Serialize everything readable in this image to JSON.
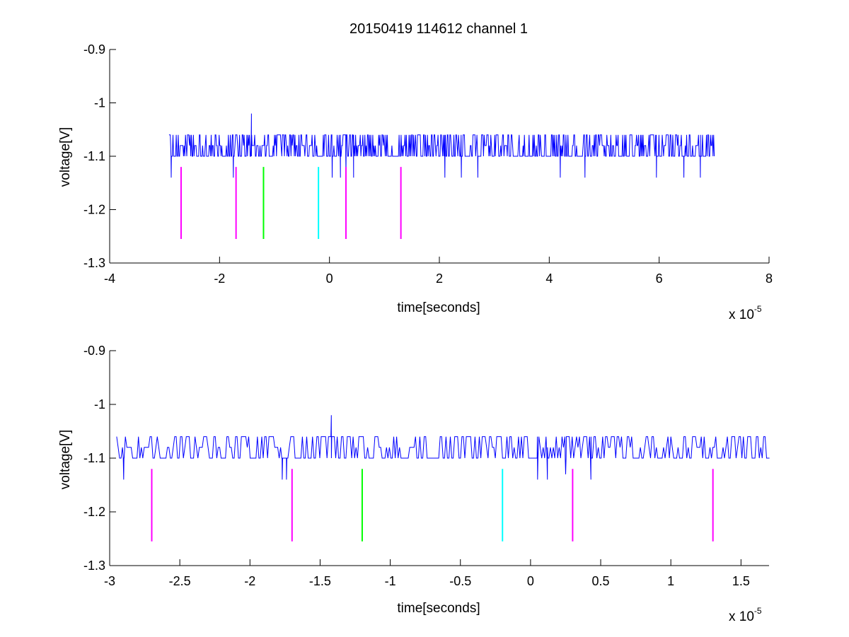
{
  "figure": {
    "title": "20150419 114612 channel 1",
    "background": "#ffffff"
  },
  "colors": {
    "trace": "#0000ff",
    "magenta": "#ff00ff",
    "green": "#00ff00",
    "cyan": "#00ffff",
    "axis": "#000000"
  },
  "chart_data": [
    {
      "type": "line",
      "title": "20150419 114612 channel 1",
      "xlabel": "time[seconds]",
      "ylabel": "voltage[V]",
      "x_scale_label": "x 10",
      "x_scale_exponent": "-5",
      "xlim": [
        -4,
        8
      ],
      "ylim": [
        -1.3,
        -0.9
      ],
      "ydir": "reverse",
      "xticks": [
        -4,
        -2,
        0,
        2,
        4,
        6,
        8
      ],
      "xtick_labels": [
        "-4",
        "-2",
        "0",
        "2",
        "4",
        "6",
        "8"
      ],
      "yticks": [
        -0.9,
        -1.0,
        -1.1,
        -1.2,
        -1.3
      ],
      "ytick_labels": [
        "-0.9",
        "-1",
        "-1.1",
        "-1.2",
        "-1.3"
      ],
      "grid": false,
      "series": [
        {
          "type": "step-noise",
          "color": "#0000ff",
          "x_range": [
            -2.92,
            7.0
          ],
          "levels": [
            -1.06,
            -1.08,
            -1.1
          ],
          "dips": [
            {
              "x": -2.88,
              "y": -1.14
            },
            {
              "x": -1.75,
              "y": -1.14
            },
            {
              "x": 0.05,
              "y": -1.14
            },
            {
              "x": 0.2,
              "y": -1.14
            },
            {
              "x": 0.3,
              "y": -1.13
            },
            {
              "x": 0.44,
              "y": -1.14
            },
            {
              "x": 2.1,
              "y": -1.14
            },
            {
              "x": 2.4,
              "y": -1.14
            },
            {
              "x": 2.7,
              "y": -1.14
            },
            {
              "x": 4.2,
              "y": -1.14
            },
            {
              "x": 4.65,
              "y": -1.14
            },
            {
              "x": 5.95,
              "y": -1.14
            },
            {
              "x": 6.45,
              "y": -1.14
            },
            {
              "x": 6.75,
              "y": -1.14
            }
          ],
          "spikes": [
            {
              "x": -1.42,
              "y": -1.02
            }
          ]
        }
      ],
      "markers": [
        {
          "x": -2.7,
          "y1": -1.12,
          "y2": -1.255,
          "color": "#ff00ff"
        },
        {
          "x": -1.7,
          "y1": -1.12,
          "y2": -1.255,
          "color": "#ff00ff"
        },
        {
          "x": -1.2,
          "y1": -1.12,
          "y2": -1.255,
          "color": "#00ff00"
        },
        {
          "x": -0.2,
          "y1": -1.12,
          "y2": -1.255,
          "color": "#00ffff"
        },
        {
          "x": 0.3,
          "y1": -1.12,
          "y2": -1.255,
          "color": "#ff00ff"
        },
        {
          "x": 1.3,
          "y1": -1.12,
          "y2": -1.255,
          "color": "#ff00ff"
        }
      ]
    },
    {
      "type": "line",
      "title": "",
      "xlabel": "time[seconds]",
      "ylabel": "voltage[V]",
      "x_scale_label": "x 10",
      "x_scale_exponent": "-5",
      "xlim": [
        -3.0,
        1.7
      ],
      "ylim": [
        -1.3,
        -0.9
      ],
      "ydir": "reverse",
      "xticks": [
        -3,
        -2.5,
        -2,
        -1.5,
        -1,
        -0.5,
        0,
        0.5,
        1,
        1.5
      ],
      "xtick_labels": [
        "-3",
        "-2.5",
        "-2",
        "-1.5",
        "-1",
        "-0.5",
        "0",
        "0.5",
        "1",
        "1.5"
      ],
      "yticks": [
        -0.9,
        -1.0,
        -1.1,
        -1.2,
        -1.3
      ],
      "ytick_labels": [
        "-0.9",
        "-1",
        "-1.1",
        "-1.2",
        "-1.3"
      ],
      "grid": false,
      "series": [
        {
          "type": "step-noise",
          "color": "#0000ff",
          "x_range": [
            -2.95,
            1.7
          ],
          "levels": [
            -1.06,
            -1.08,
            -1.1
          ],
          "dips": [
            {
              "x": -2.9,
              "y": -1.14
            },
            {
              "x": -1.77,
              "y": -1.14
            },
            {
              "x": -1.74,
              "y": -1.14
            },
            {
              "x": 0.05,
              "y": -1.14
            },
            {
              "x": 0.12,
              "y": -1.14
            },
            {
              "x": 0.25,
              "y": -1.13
            },
            {
              "x": 0.43,
              "y": -1.14
            }
          ],
          "spikes": [
            {
              "x": -1.42,
              "y": -1.02
            }
          ]
        }
      ],
      "markers": [
        {
          "x": -2.7,
          "y1": -1.12,
          "y2": -1.255,
          "color": "#ff00ff"
        },
        {
          "x": -1.7,
          "y1": -1.12,
          "y2": -1.255,
          "color": "#ff00ff"
        },
        {
          "x": -1.2,
          "y1": -1.12,
          "y2": -1.255,
          "color": "#00ff00"
        },
        {
          "x": -0.2,
          "y1": -1.12,
          "y2": -1.255,
          "color": "#00ffff"
        },
        {
          "x": 0.3,
          "y1": -1.12,
          "y2": -1.255,
          "color": "#ff00ff"
        },
        {
          "x": 1.3,
          "y1": -1.12,
          "y2": -1.255,
          "color": "#ff00ff"
        }
      ]
    }
  ]
}
